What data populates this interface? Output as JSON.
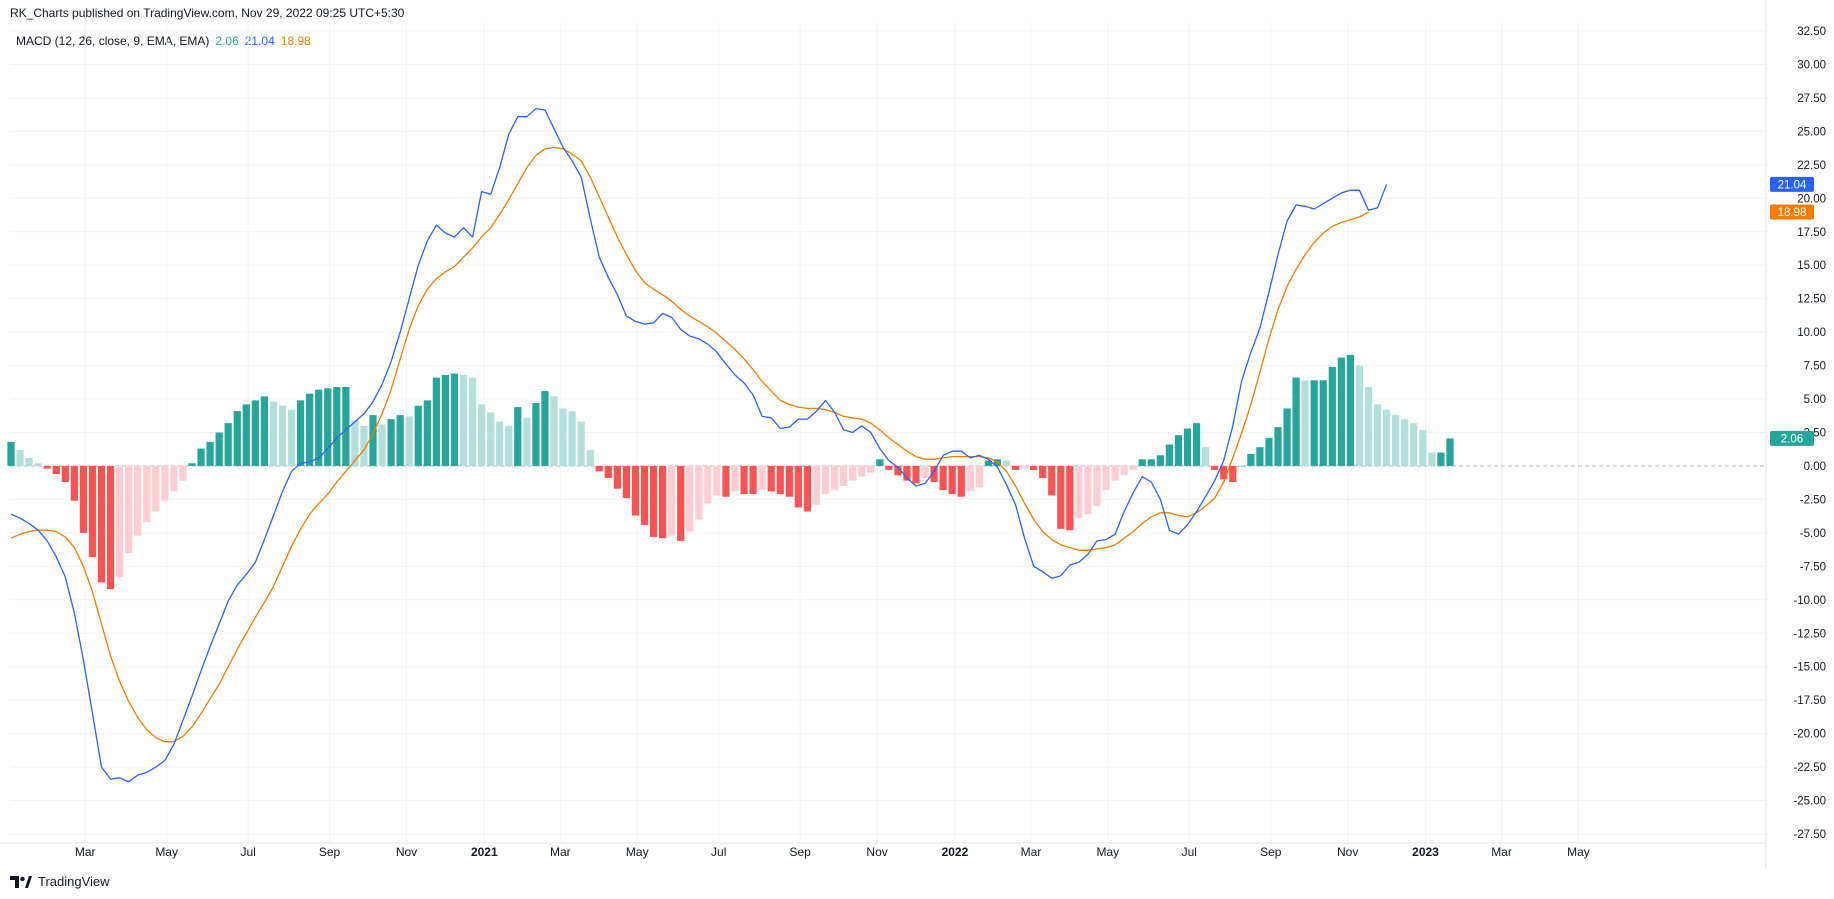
{
  "header": {
    "published": "RK_Charts published on TradingView.com, Nov 29, 2022 09:25 UTC+5:30"
  },
  "legend": {
    "label": "MACD (12, 26, close, 9, EMA, EMA)",
    "histogram_value": "2.06",
    "macd_value": "21.04",
    "signal_value": "18.98"
  },
  "footer": {
    "brand": "TradingView"
  },
  "colors": {
    "macd": "#2962ff",
    "signal": "#f57c00",
    "hist_pos_strong": "#26a69a",
    "hist_pos_weak": "#b2dfdb",
    "hist_neg_strong": "#ff5252",
    "hist_neg_weak": "#ffcdd2",
    "grid": "#f0f3fa",
    "zero_line": "#b2b5be",
    "axis_text": "#131722"
  },
  "chart_data": {
    "type": "line",
    "title": "",
    "ylim": [
      -28.5,
      33
    ],
    "y_ticks": [
      "32.50",
      "30.00",
      "27.50",
      "25.00",
      "22.50",
      "20.00",
      "17.50",
      "15.00",
      "12.50",
      "10.00",
      "7.50",
      "5.00",
      "2.50",
      "0.00",
      "-2.50",
      "-5.00",
      "-7.50",
      "-10.00",
      "-12.50",
      "-15.00",
      "-17.50",
      "-20.00",
      "-22.50",
      "-25.00",
      "-27.50"
    ],
    "x_ticks": [
      {
        "label": "Mar",
        "week": 8.2,
        "bold": false
      },
      {
        "label": "May",
        "week": 17.2,
        "bold": false
      },
      {
        "label": "Jul",
        "week": 26.2,
        "bold": false
      },
      {
        "label": "Sep",
        "week": 35.2,
        "bold": false
      },
      {
        "label": "Nov",
        "week": 43.7,
        "bold": false
      },
      {
        "label": "2021",
        "week": 52.3,
        "bold": true
      },
      {
        "label": "Mar",
        "week": 60.7,
        "bold": false
      },
      {
        "label": "May",
        "week": 69.2,
        "bold": false
      },
      {
        "label": "Jul",
        "week": 78.2,
        "bold": false
      },
      {
        "label": "Sep",
        "week": 87.2,
        "bold": false
      },
      {
        "label": "Nov",
        "week": 95.7,
        "bold": false
      },
      {
        "label": "2022",
        "week": 104.3,
        "bold": true
      },
      {
        "label": "Mar",
        "week": 112.7,
        "bold": false
      },
      {
        "label": "May",
        "week": 121.2,
        "bold": false
      },
      {
        "label": "Jul",
        "week": 130.2,
        "bold": false
      },
      {
        "label": "Sep",
        "week": 139.2,
        "bold": false
      },
      {
        "label": "Nov",
        "week": 147.7,
        "bold": false
      },
      {
        "label": "2023",
        "week": 156.3,
        "bold": true
      },
      {
        "label": "Mar",
        "week": 164.7,
        "bold": false
      },
      {
        "label": "May",
        "week": 173.2,
        "bold": false
      }
    ],
    "x_range": [
      0,
      177
    ],
    "macd": [
      -3.6,
      -3.9,
      -4.3,
      -4.8,
      -5.6,
      -6.8,
      -8.3,
      -11,
      -14.5,
      -18.5,
      -22.5,
      -23.4,
      -23.3,
      -23.6,
      -23.1,
      -22.9,
      -22.5,
      -22,
      -20.8,
      -19,
      -17.2,
      -15.3,
      -13.5,
      -11.8,
      -10.1,
      -8.9,
      -8.1,
      -7.2,
      -5.5,
      -3.7,
      -1.9,
      -0.4,
      0.2,
      0.3,
      0.6,
      1.3,
      2.1,
      2.7,
      3.3,
      3.9,
      4.8,
      6.1,
      7.8,
      10,
      12.5,
      15,
      16.8,
      18,
      17.4,
      17.1,
      17.8,
      17.1,
      20.5,
      20.3,
      22.3,
      24.8,
      26.1,
      26.1,
      26.7,
      26.6,
      25.2,
      23.8,
      22.8,
      21.6,
      18.5,
      15.6,
      14.1,
      12.8,
      11.2,
      10.8,
      10.6,
      10.7,
      11.4,
      11.1,
      10.2,
      9.7,
      9.5,
      9.1,
      8.5,
      7.6,
      6.8,
      6.2,
      5.3,
      3.7,
      3.6,
      2.8,
      2.9,
      3.5,
      3.5,
      4.1,
      4.9,
      4,
      2.7,
      2.5,
      3,
      2.5,
      1.3,
      0.4,
      -0.1,
      -0.9,
      -1.5,
      -1.3,
      -0.4,
      0.8,
      1.1,
      1.1,
      0.6,
      0.8,
      0.5,
      -0.1,
      -1.4,
      -2.9,
      -5.4,
      -7.5,
      -7.9,
      -8.4,
      -8.2,
      -7.4,
      -7.2,
      -6.6,
      -5.6,
      -5.5,
      -5.1,
      -3.4,
      -2,
      -0.8,
      -1.2,
      -2.5,
      -4.8,
      -5.1,
      -4.4,
      -3.4,
      -2.3,
      -1.1,
      0.4,
      3,
      6.4,
      8.5,
      10.3,
      13,
      15.8,
      18.3,
      19.5,
      19.4,
      19.2,
      19.6,
      20,
      20.4,
      20.6,
      20.6,
      19.1,
      19.3,
      21.04
    ],
    "signal": [
      -5.4,
      -5.1,
      -4.9,
      -4.8,
      -4.8,
      -4.9,
      -5.3,
      -6.1,
      -7.5,
      -9.4,
      -11.8,
      -14.2,
      -16.1,
      -17.6,
      -18.8,
      -19.7,
      -20.3,
      -20.6,
      -20.6,
      -20.2,
      -19.5,
      -18.5,
      -17.4,
      -16.3,
      -15,
      -13.7,
      -12.5,
      -11.3,
      -10.2,
      -9,
      -7.5,
      -6,
      -4.7,
      -3.6,
      -2.8,
      -2.1,
      -1.2,
      -0.4,
      0.4,
      1.2,
      2.4,
      3.9,
      5.7,
      8,
      10.2,
      12,
      13.2,
      14,
      14.5,
      14.9,
      15.6,
      16.3,
      17.1,
      17.8,
      18.8,
      19.9,
      21.1,
      22.3,
      23.2,
      23.7,
      23.8,
      23.7,
      23.3,
      22.8,
      21.6,
      20.1,
      18.6,
      17.1,
      15.8,
      14.6,
      13.7,
      13.2,
      12.8,
      12.3,
      11.7,
      11.2,
      10.8,
      10.4,
      9.9,
      9.3,
      8.7,
      8,
      7.2,
      6.3,
      5.6,
      4.9,
      4.6,
      4.4,
      4.3,
      4.3,
      4.2,
      4,
      3.7,
      3.6,
      3.5,
      3.2,
      2.7,
      2.1,
      1.6,
      1.1,
      0.7,
      0.5,
      0.5,
      0.6,
      0.7,
      0.7,
      0.7,
      0.7,
      0.6,
      0.3,
      -0.4,
      -1.5,
      -2.8,
      -4,
      -4.9,
      -5.5,
      -5.9,
      -6.1,
      -6.3,
      -6.3,
      -6.2,
      -6.1,
      -5.9,
      -5.4,
      -4.9,
      -4.3,
      -3.8,
      -3.5,
      -3.5,
      -3.7,
      -3.8,
      -3.5,
      -3,
      -2.4,
      -1.2,
      0.6,
      2.5,
      4.6,
      7,
      9.5,
      11.7,
      13.4,
      14.7,
      15.8,
      16.7,
      17.4,
      17.9,
      18.2,
      18.4,
      18.6,
      18.98
    ],
    "histogram": [
      1.8,
      1.2,
      0.6,
      0.2,
      -0.2,
      -0.6,
      -1.2,
      -2.6,
      -5,
      -6.8,
      -8.7,
      -9.2,
      -8.3,
      -6.5,
      -5.2,
      -4.2,
      -3.4,
      -2.6,
      -1.9,
      -1.1,
      0.2,
      1.3,
      1.8,
      2.5,
      3.2,
      4.1,
      4.6,
      4.9,
      5.2,
      4.8,
      4.5,
      4.2,
      4.9,
      5.4,
      5.7,
      5.8,
      5.9,
      5.9,
      3.4,
      3,
      3.8,
      3.1,
      3.5,
      3.8,
      3.7,
      4.5,
      4.9,
      6.6,
      6.8,
      6.9,
      6.8,
      6.6,
      4.6,
      4,
      3.3,
      3,
      4.4,
      3.6,
      4.7,
      5.6,
      5.2,
      4.3,
      4.1,
      3.3,
      1.2,
      -0.4,
      -0.9,
      -1.7,
      -2.4,
      -3.7,
      -4.4,
      -5.3,
      -5.4,
      -5.2,
      -5.6,
      -4.9,
      -4,
      -2.8,
      -2.2,
      -2.3,
      -1.9,
      -2.1,
      -2.1,
      -1.8,
      -1.9,
      -2.1,
      -2.3,
      -3.1,
      -3.4,
      -2.9,
      -2.1,
      -1.8,
      -1.5,
      -1.1,
      -0.8,
      -0.5,
      0.5,
      -0.3,
      -0.7,
      -1.1,
      -1.3,
      -0.9,
      -1.2,
      -1.8,
      -2.1,
      -2.3,
      -1.9,
      -1.6,
      0.4,
      0.5,
      0.4,
      -0.3,
      -0.2,
      -0.3,
      -0.9,
      -2.2,
      -4.7,
      -4.8,
      -3.9,
      -3.6,
      -3,
      -1.8,
      -1.1,
      -0.7,
      -0.3,
      0.5,
      0.5,
      0.8,
      1.6,
      2.3,
      2.8,
      3.2,
      1.4,
      -0.3,
      -1,
      -1.2,
      0,
      0.9,
      1.4,
      2.1,
      2.9,
      4.3,
      6.6,
      6.4,
      6.4,
      6.4,
      7.4,
      8.1,
      8.3,
      7.5,
      5.9,
      4.6,
      4.2,
      3.8,
      3.5,
      3.2,
      2.7,
      1,
      1,
      2.06
    ]
  }
}
